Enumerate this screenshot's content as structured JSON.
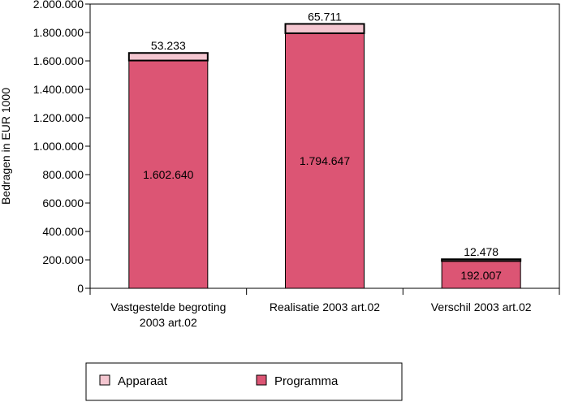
{
  "chart_data": {
    "type": "bar",
    "stacked": true,
    "ylabel": "Bedragen in EUR 1000",
    "ylim": [
      0,
      2000000
    ],
    "y_ticks": [
      0,
      200000,
      400000,
      600000,
      800000,
      1000000,
      1200000,
      1400000,
      1600000,
      1800000,
      2000000
    ],
    "y_tick_labels": [
      "0",
      "200.000",
      "400.000",
      "600.000",
      "800.000",
      "1.000.000",
      "1.200.000",
      "1.400.000",
      "1.600.000",
      "1.800.000",
      "2.000.000"
    ],
    "categories": [
      [
        "Vastgestelde begroting",
        "2003 art.02"
      ],
      [
        "Realisatie 2003 art.02"
      ],
      [
        "Verschil 2003 art.02"
      ]
    ],
    "series": [
      {
        "name": "Programma",
        "color": "#dc5574",
        "values": [
          1602640,
          1794647,
          192007
        ],
        "labels": [
          "1.602.640",
          "1.794.647",
          "192.007"
        ]
      },
      {
        "name": "Apparaat",
        "color": "#f4c6d0",
        "values": [
          53233,
          65711,
          12478
        ],
        "labels": [
          "53.233",
          "65.711",
          "12.478"
        ]
      }
    ],
    "legend_position": "bottom",
    "grid": false
  }
}
